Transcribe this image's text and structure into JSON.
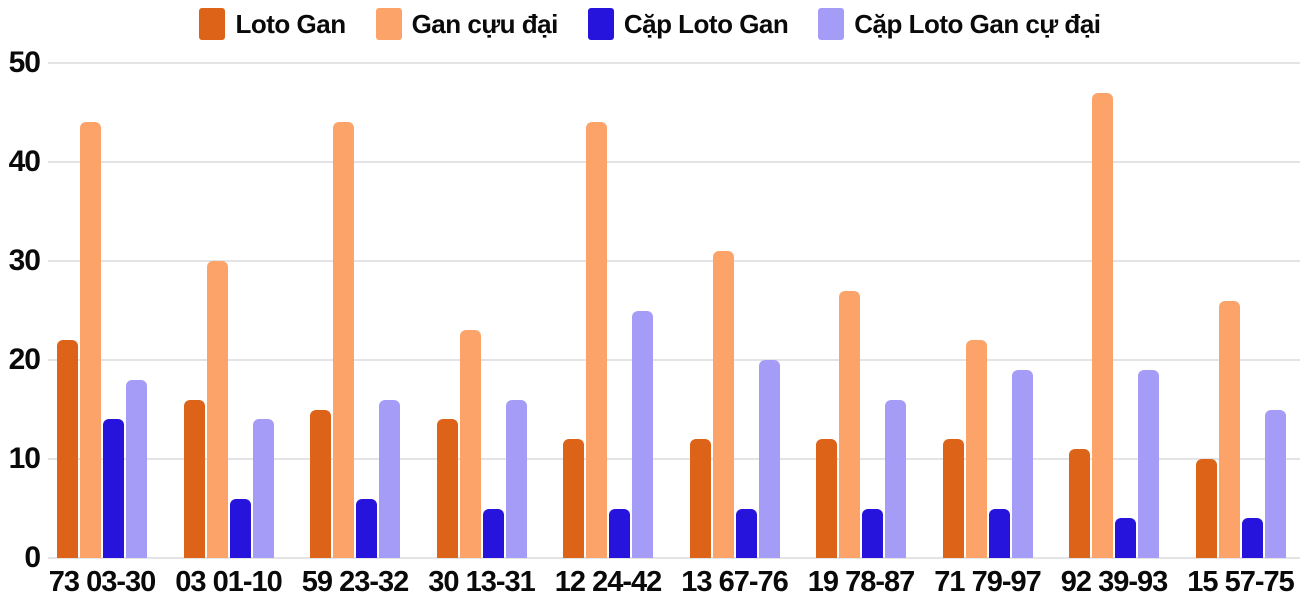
{
  "chart_data": {
    "type": "bar",
    "title": "",
    "xlabel": "",
    "ylabel": "",
    "categories": [
      "73 03-30",
      "03 01-10",
      "59 23-32",
      "30 13-31",
      "12 24-42",
      "13 67-76",
      "19 78-87",
      "71 79-97",
      "92 39-93",
      "15 57-75"
    ],
    "series": [
      {
        "name": "Loto Gan",
        "color": "#DC6318",
        "values": [
          22,
          16,
          15,
          14,
          12,
          12,
          12,
          12,
          11,
          10
        ]
      },
      {
        "name": "Gan cựu đại",
        "color": "#FCA369",
        "values": [
          44,
          30,
          44,
          23,
          44,
          31,
          27,
          22,
          47,
          26
        ]
      },
      {
        "name": "Cặp Loto Gan",
        "color": "#2614DC",
        "values": [
          14,
          6,
          6,
          5,
          5,
          5,
          5,
          5,
          4,
          4
        ]
      },
      {
        "name": "Cặp Loto Gan cự đại",
        "color": "#A59CF8",
        "values": [
          18,
          14,
          16,
          16,
          25,
          20,
          16,
          19,
          19,
          15
        ]
      }
    ],
    "ylim": [
      0,
      50
    ],
    "yticks": [
      0,
      10,
      20,
      30,
      40,
      50
    ],
    "grid": true,
    "legend_position": "top",
    "background_color": "#FFFFFF",
    "gridline_color": "#E4E4E6",
    "text_color": "#0A0A0A"
  }
}
